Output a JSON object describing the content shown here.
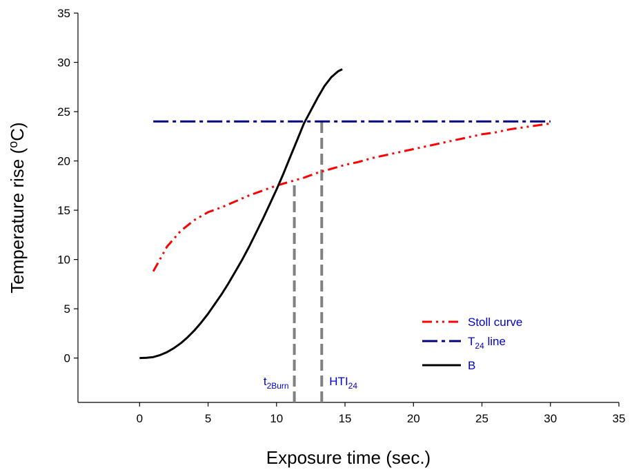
{
  "chart_data": {
    "type": "line",
    "xlabel": "Exposure time (sec.)",
    "ylabel": {
      "pre": "Temperature rise (",
      "sup": "o",
      "post": "C)"
    },
    "xlim": [
      -4.5,
      35
    ],
    "ylim": [
      -4.5,
      35
    ],
    "xticks": [
      0,
      5,
      10,
      15,
      20,
      25,
      30,
      35
    ],
    "yticks": [
      0,
      5,
      10,
      15,
      20,
      25,
      30,
      35
    ],
    "grid": false,
    "legend_position": "bottom-right",
    "series": [
      {
        "key": "stoll",
        "name": "Stoll curve",
        "color": "#ff0000",
        "style": "dash-dot-dot",
        "x": [
          1,
          2,
          3,
          4,
          5,
          6,
          7,
          8,
          9,
          10,
          11,
          12,
          13,
          14,
          15,
          16,
          17,
          18,
          19,
          20,
          21,
          22,
          23,
          24,
          25,
          26,
          27,
          28,
          29,
          30
        ],
        "y": [
          8.8,
          11.3,
          12.9,
          14.0,
          14.8,
          15.3,
          15.9,
          16.5,
          17.0,
          17.5,
          17.9,
          18.3,
          18.8,
          19.2,
          19.6,
          19.9,
          20.3,
          20.6,
          20.9,
          21.2,
          21.5,
          21.8,
          22.1,
          22.4,
          22.7,
          22.9,
          23.2,
          23.4,
          23.6,
          23.8
        ]
      },
      {
        "key": "t24",
        "name_main": "T",
        "name_sub": "24",
        "name_rest": " line",
        "color": "#000080",
        "style": "dash-dot",
        "x": [
          1,
          30
        ],
        "y": [
          24,
          24
        ]
      },
      {
        "key": "b",
        "name": "B",
        "color": "#000000",
        "style": "solid",
        "x": [
          0,
          0.5,
          1,
          1.5,
          2,
          2.5,
          3,
          3.5,
          4,
          4.5,
          5,
          5.5,
          6,
          6.5,
          7,
          7.5,
          8,
          8.5,
          9,
          9.5,
          10,
          10.5,
          11,
          11.5,
          12,
          12.5,
          13,
          13.5,
          14,
          14.5,
          14.8
        ],
        "y": [
          0,
          0.02,
          0.1,
          0.3,
          0.6,
          1.0,
          1.5,
          2.1,
          2.8,
          3.6,
          4.5,
          5.5,
          6.5,
          7.6,
          8.8,
          10.0,
          11.3,
          12.7,
          14.1,
          15.6,
          17.1,
          18.7,
          20.4,
          22.1,
          23.8,
          25.1,
          26.4,
          27.6,
          28.5,
          29.1,
          29.3
        ]
      }
    ],
    "annotations": [
      {
        "key": "t2burn",
        "main": "t",
        "sub": "2Burn",
        "x": 11.3,
        "y_top": 18.0,
        "color": "#0000cc"
      },
      {
        "key": "hti24",
        "main": "HTI",
        "sub": "24",
        "x": 13.3,
        "y_top": 24.0,
        "color": "#0000cc"
      }
    ],
    "reference_line_color": "#808080",
    "legend_text_color": "#0000cc"
  }
}
